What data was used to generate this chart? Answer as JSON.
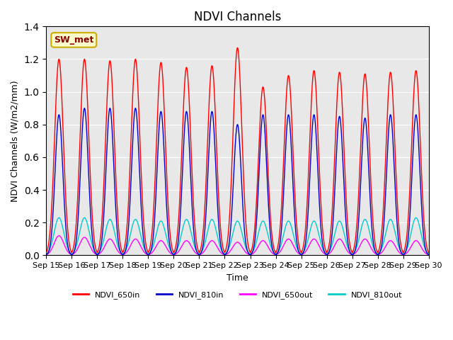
{
  "title": "NDVI Channels",
  "ylabel": "NDVI Channels (W/m2/mm)",
  "xlabel": "Time",
  "ylim": [
    0.0,
    1.4
  ],
  "yticks": [
    0.0,
    0.2,
    0.4,
    0.6,
    0.8,
    1.0,
    1.2,
    1.4
  ],
  "xtick_labels": [
    "Sep 15",
    "Sep 16",
    "Sep 17",
    "Sep 18",
    "Sep 19",
    "Sep 20",
    "Sep 21",
    "Sep 22",
    "Sep 23",
    "Sep 24",
    "Sep 25",
    "Sep 26",
    "Sep 27",
    "Sep 28",
    "Sep 29",
    "Sep 30"
  ],
  "annotation_text": "SW_met",
  "annotation_bg": "#ffffcc",
  "annotation_border": "#ccaa00",
  "annotation_text_color": "#880000",
  "color_650in": "#ff0000",
  "color_810in": "#0000cc",
  "color_650out": "#ff00ff",
  "color_810out": "#00cccc",
  "legend_labels": [
    "NDVI_650in",
    "NDVI_810in",
    "NDVI_650out",
    "NDVI_810out"
  ],
  "bg_color": "#e8e8e8",
  "n_days": 15,
  "peak_650in": [
    1.2,
    1.2,
    1.19,
    1.2,
    1.18,
    1.15,
    1.16,
    1.27,
    1.03,
    1.1,
    1.13,
    1.12,
    1.11,
    1.12,
    1.13
  ],
  "peak_810in": [
    0.86,
    0.9,
    0.9,
    0.9,
    0.88,
    0.88,
    0.88,
    0.8,
    0.86,
    0.86,
    0.86,
    0.85,
    0.84,
    0.86,
    0.86
  ],
  "peak_650out": [
    0.12,
    0.11,
    0.1,
    0.1,
    0.09,
    0.09,
    0.09,
    0.08,
    0.09,
    0.1,
    0.1,
    0.1,
    0.1,
    0.09,
    0.09
  ],
  "peak_810out": [
    0.23,
    0.23,
    0.22,
    0.22,
    0.21,
    0.22,
    0.22,
    0.21,
    0.21,
    0.21,
    0.21,
    0.21,
    0.22,
    0.22,
    0.23
  ]
}
